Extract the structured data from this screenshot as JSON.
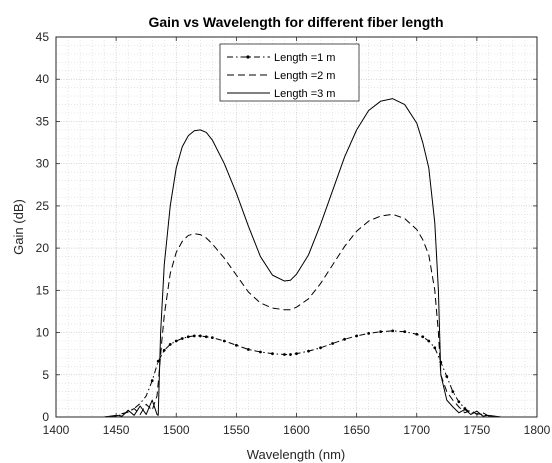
{
  "chart_data": {
    "type": "line",
    "title": "Gain vs Wavelength for different fiber length",
    "xlabel": "Wavelength (nm)",
    "ylabel": "Gain (dB)",
    "xlim": [
      1400,
      1800
    ],
    "ylim": [
      0,
      45
    ],
    "xticks": [
      "1400",
      "1450",
      "1500",
      "1550",
      "1600",
      "1650",
      "1700",
      "1750",
      "1800"
    ],
    "yticks": [
      "0",
      "5",
      "10",
      "15",
      "20",
      "25",
      "30",
      "35",
      "40",
      "45"
    ],
    "grid": true,
    "legend_position": "top-center",
    "series": [
      {
        "name": "Length =1 m",
        "style": "dash-dot-markers",
        "color": "#000000",
        "x": [
          1400,
          1420,
          1440,
          1450,
          1455,
          1460,
          1465,
          1470,
          1475,
          1480,
          1485,
          1490,
          1495,
          1500,
          1505,
          1510,
          1515,
          1520,
          1525,
          1530,
          1540,
          1550,
          1560,
          1570,
          1580,
          1590,
          1595,
          1600,
          1610,
          1620,
          1630,
          1640,
          1650,
          1660,
          1670,
          1680,
          1690,
          1700,
          1705,
          1710,
          1715,
          1720,
          1725,
          1730,
          1735,
          1740,
          1745,
          1750,
          1755,
          1760,
          1770,
          1780,
          1800
        ],
        "y": [
          0,
          0,
          0,
          0.1,
          0.3,
          0.6,
          1.0,
          1.6,
          2.5,
          4.3,
          6.6,
          7.9,
          8.6,
          9.0,
          9.3,
          9.5,
          9.6,
          9.6,
          9.5,
          9.4,
          9.0,
          8.5,
          8.0,
          7.7,
          7.5,
          7.4,
          7.4,
          7.5,
          7.8,
          8.2,
          8.7,
          9.2,
          9.6,
          9.9,
          10.1,
          10.2,
          10.1,
          9.8,
          9.5,
          9.0,
          8.2,
          6.5,
          4.8,
          3.0,
          1.8,
          1.0,
          0.5,
          0.4,
          0.3,
          0.1,
          0,
          0,
          0
        ]
      },
      {
        "name": "Length =2 m",
        "style": "dashed",
        "color": "#000000",
        "x": [
          1400,
          1420,
          1440,
          1450,
          1455,
          1460,
          1465,
          1470,
          1475,
          1480,
          1484,
          1485,
          1488,
          1490,
          1495,
          1500,
          1505,
          1510,
          1515,
          1520,
          1525,
          1530,
          1540,
          1550,
          1560,
          1570,
          1580,
          1590,
          1595,
          1600,
          1610,
          1620,
          1630,
          1640,
          1650,
          1660,
          1670,
          1680,
          1690,
          1700,
          1705,
          1710,
          1715,
          1718,
          1720,
          1725,
          1730,
          1735,
          1740,
          1745,
          1750,
          1755,
          1760,
          1770,
          1780,
          1800
        ],
        "y": [
          0,
          0,
          0,
          0.1,
          0.4,
          0.6,
          1.0,
          0.3,
          1.5,
          0.8,
          2.5,
          4.0,
          9.0,
          12.0,
          17.0,
          19.5,
          20.8,
          21.5,
          21.7,
          21.6,
          21.2,
          20.5,
          18.8,
          16.8,
          14.8,
          13.5,
          12.9,
          12.7,
          12.7,
          13.0,
          14.0,
          15.8,
          18.0,
          20.2,
          22.0,
          23.2,
          23.8,
          24.0,
          23.5,
          22.2,
          21.0,
          19.2,
          15.0,
          10.0,
          5.0,
          3.0,
          2.0,
          1.2,
          0.5,
          0.8,
          0.3,
          0.5,
          0.1,
          0,
          0,
          0
        ]
      },
      {
        "name": "Length =3 m",
        "style": "solid",
        "color": "#000000",
        "x": [
          1400,
          1420,
          1440,
          1450,
          1455,
          1460,
          1465,
          1470,
          1475,
          1480,
          1484,
          1485,
          1487,
          1490,
          1495,
          1500,
          1505,
          1510,
          1515,
          1520,
          1525,
          1530,
          1540,
          1550,
          1560,
          1570,
          1580,
          1590,
          1595,
          1600,
          1610,
          1620,
          1630,
          1640,
          1650,
          1660,
          1670,
          1680,
          1690,
          1700,
          1705,
          1710,
          1715,
          1718,
          1720,
          1725,
          1730,
          1735,
          1740,
          1745,
          1750,
          1755,
          1760,
          1770,
          1780,
          1800
        ],
        "y": [
          0,
          0,
          0,
          0.2,
          0.1,
          0.8,
          0.2,
          1.3,
          0.3,
          2.0,
          0.3,
          0.2,
          10.0,
          18.0,
          25.0,
          29.5,
          32.0,
          33.3,
          33.9,
          34.0,
          33.7,
          32.8,
          30.0,
          26.5,
          22.6,
          19.0,
          16.8,
          16.1,
          16.2,
          16.9,
          19.2,
          22.8,
          26.8,
          30.8,
          34.0,
          36.3,
          37.4,
          37.7,
          37.0,
          34.8,
          32.5,
          29.5,
          23.0,
          15.0,
          5.0,
          2.0,
          1.2,
          0.5,
          0.9,
          0.3,
          0.7,
          0.1,
          0.2,
          0,
          0,
          0
        ]
      }
    ]
  }
}
